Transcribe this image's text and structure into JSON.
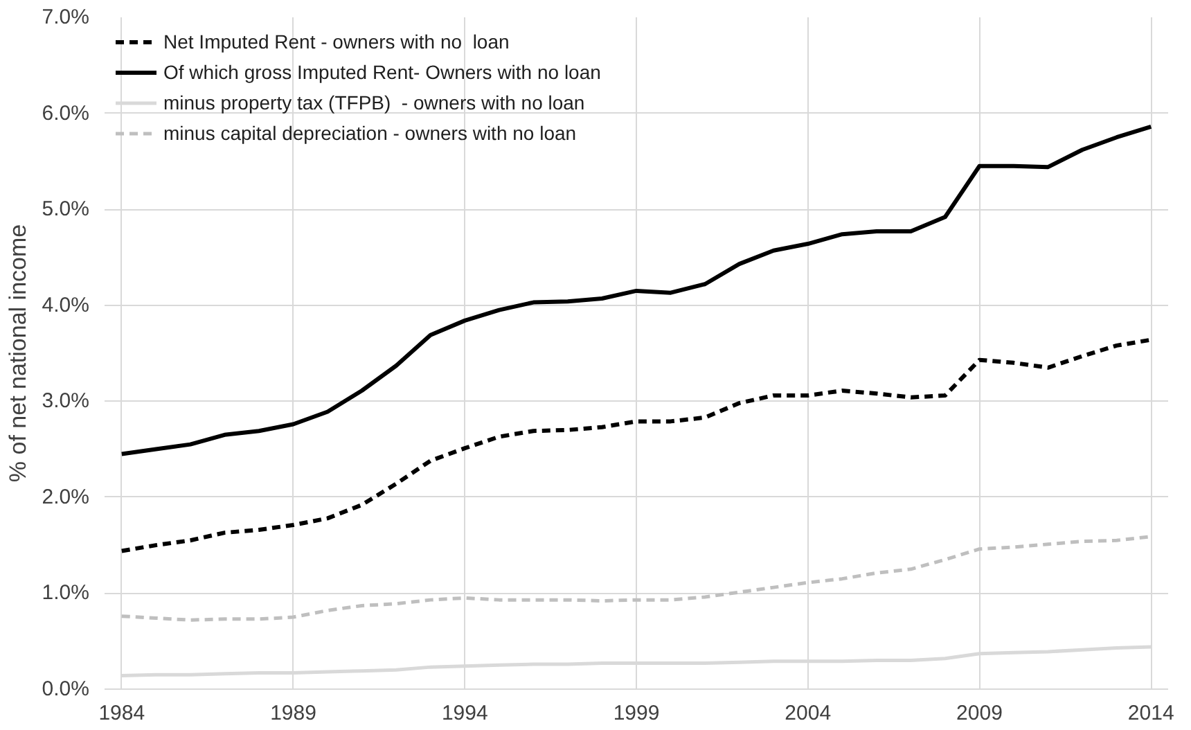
{
  "chart_data": {
    "type": "line",
    "ylabel": "% of net national income",
    "x": [
      1984,
      1985,
      1986,
      1987,
      1988,
      1989,
      1990,
      1991,
      1992,
      1993,
      1994,
      1995,
      1996,
      1997,
      1998,
      1999,
      2000,
      2001,
      2002,
      2003,
      2004,
      2005,
      2006,
      2007,
      2008,
      2009,
      2010,
      2011,
      2012,
      2013,
      2014
    ],
    "series": [
      {
        "name": "Net Imputed Rent - owners with no  loan",
        "color": "#000000",
        "line_style": "dashed",
        "values": [
          1.44,
          1.5,
          1.55,
          1.63,
          1.66,
          1.71,
          1.78,
          1.92,
          2.14,
          2.38,
          2.51,
          2.63,
          2.69,
          2.7,
          2.73,
          2.79,
          2.79,
          2.83,
          2.98,
          3.06,
          3.06,
          3.11,
          3.08,
          3.04,
          3.06,
          3.43,
          3.4,
          3.35,
          3.47,
          3.58,
          3.64
        ]
      },
      {
        "name": "Of which gross Imputed Rent- Owners with no loan",
        "color": "#000000",
        "line_style": "solid",
        "values": [
          2.45,
          2.5,
          2.55,
          2.65,
          2.69,
          2.76,
          2.89,
          3.11,
          3.37,
          3.69,
          3.84,
          3.95,
          4.03,
          4.04,
          4.07,
          4.15,
          4.13,
          4.22,
          4.43,
          4.57,
          4.64,
          4.74,
          4.77,
          4.77,
          4.92,
          5.45,
          5.45,
          5.44,
          5.62,
          5.75,
          5.86
        ]
      },
      {
        "name": "minus property tax (TFPB)  - owners with no loan",
        "color": "#d9d9d9",
        "line_style": "solid",
        "values": [
          0.14,
          0.15,
          0.15,
          0.16,
          0.17,
          0.17,
          0.18,
          0.19,
          0.2,
          0.23,
          0.24,
          0.25,
          0.26,
          0.26,
          0.27,
          0.27,
          0.27,
          0.27,
          0.28,
          0.29,
          0.29,
          0.29,
          0.3,
          0.3,
          0.32,
          0.37,
          0.38,
          0.39,
          0.41,
          0.43,
          0.44
        ]
      },
      {
        "name": "minus capital depreciation - owners with no loan",
        "color": "#bfbfbf",
        "line_style": "dashed",
        "values": [
          0.76,
          0.74,
          0.72,
          0.73,
          0.73,
          0.75,
          0.82,
          0.87,
          0.89,
          0.93,
          0.95,
          0.93,
          0.93,
          0.93,
          0.92,
          0.93,
          0.93,
          0.96,
          1.01,
          1.06,
          1.11,
          1.15,
          1.21,
          1.25,
          1.35,
          1.46,
          1.48,
          1.51,
          1.54,
          1.55,
          1.59
        ]
      }
    ],
    "xlim": [
      1983.5,
      2014.5
    ],
    "xticks": [
      1984,
      1989,
      1994,
      1999,
      2004,
      2009,
      2014
    ],
    "ylim": [
      0,
      7
    ],
    "yticks": [
      {
        "value": 0,
        "label": "0.0%"
      },
      {
        "value": 1,
        "label": "1.0%"
      },
      {
        "value": 2,
        "label": "2.0%"
      },
      {
        "value": 3,
        "label": "3.0%"
      },
      {
        "value": 4,
        "label": "4.0%"
      },
      {
        "value": 5,
        "label": "5.0%"
      },
      {
        "value": 6,
        "label": "6.0%"
      },
      {
        "value": 7,
        "label": "7.0%"
      }
    ],
    "grid": true,
    "legend": "top left",
    "marker": "none"
  }
}
